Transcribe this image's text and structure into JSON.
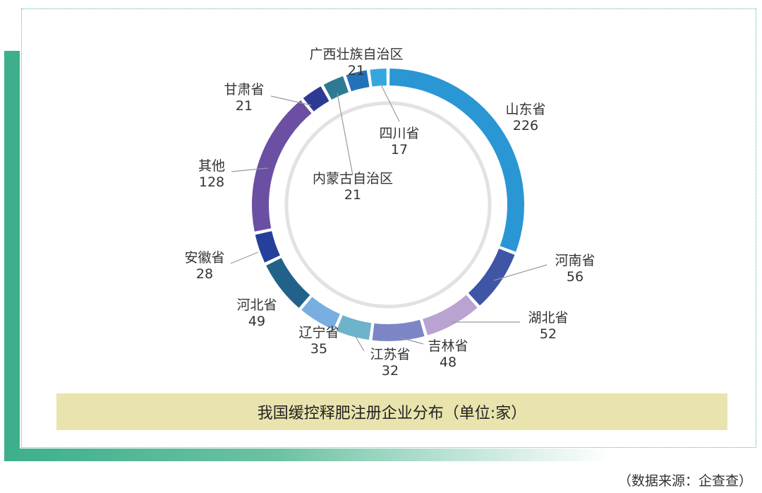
{
  "chart_data": {
    "type": "pie",
    "variant": "donut",
    "title": "我国缓控释肥注册企业分布（单位:家）",
    "slices": [
      {
        "label": "山东省",
        "value": 226,
        "color": "#2a96d3"
      },
      {
        "label": "河南省",
        "value": 56,
        "color": "#3f55a5"
      },
      {
        "label": "湖北省",
        "value": 52,
        "color": "#b9a3d0"
      },
      {
        "label": "吉林省",
        "value": 48,
        "color": "#7c86c7"
      },
      {
        "label": "江苏省",
        "value": 32,
        "color": "#6db3c9"
      },
      {
        "label": "辽宁省",
        "value": 35,
        "color": "#78aee0"
      },
      {
        "label": "河北省",
        "value": 49,
        "color": "#22628a"
      },
      {
        "label": "安徽省",
        "value": 28,
        "color": "#253f9b"
      },
      {
        "label": "其他",
        "value": 128,
        "color": "#6b4fa3"
      },
      {
        "label": "甘肃省",
        "value": 21,
        "color": "#2d3a94"
      },
      {
        "label": "内蒙古自治区",
        "value": 21,
        "color": "#2e7a94"
      },
      {
        "label": "广西壮族自治区",
        "value": 21,
        "color": "#2371b8"
      },
      {
        "label": "四川省",
        "value": 17,
        "color": "#34a8de"
      }
    ]
  },
  "caption": "我国缓控释肥注册企业分布（单位:家）",
  "source": "（数据来源：企查查）"
}
